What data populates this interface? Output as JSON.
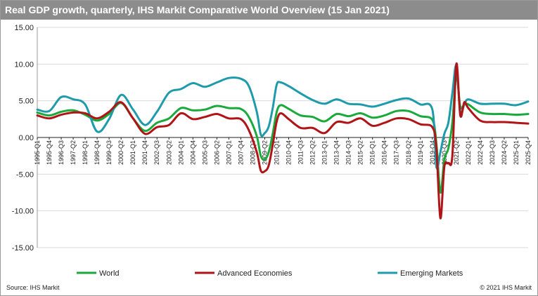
{
  "header": {
    "title": "Real GDP growth, quarterly, IHS Markit Comparative World Overview (15 Jan 2021)"
  },
  "footer": {
    "source": "Source: IHS Markit",
    "copyright": "© 2021 IHS Markit"
  },
  "chart_data": {
    "type": "line",
    "title": "Real GDP growth, quarterly, IHS Markit Comparative World Overview (15 Jan 2021)",
    "xlabel": "",
    "ylabel": "",
    "ylim": [
      -15,
      15
    ],
    "y_ticks": [
      "15.00",
      "10.00",
      "5.00",
      "0.00",
      "-5.00",
      "-10.00",
      "-15.00"
    ],
    "grid": "horizontal",
    "legend": "bottom",
    "x_start": "1995-Q1",
    "x_end": "2025-Q4",
    "x_tick_labels": [
      "1995-Q1",
      "1995-Q4",
      "1996-Q3",
      "1997-Q2",
      "1998-Q1",
      "1998-Q4",
      "1999-Q3",
      "2000-Q2",
      "2001-Q1",
      "2001-Q4",
      "2002-Q3",
      "2003-Q2",
      "2004-Q1",
      "2004-Q4",
      "2005-Q3",
      "2006-Q2",
      "2007-Q1",
      "2007-Q4",
      "2008-Q3",
      "2009-Q2",
      "2010-Q1",
      "2010-Q4",
      "2011-Q3",
      "2012-Q2",
      "2013-Q1",
      "2013-Q4",
      "2014-Q3",
      "2015-Q2",
      "2016-Q1",
      "2016-Q4",
      "2017-Q3",
      "2018-Q2",
      "2019-Q1",
      "2019-Q4",
      "2020-Q3",
      "2021-Q2",
      "2022-Q1",
      "2022-Q4",
      "2023-Q3",
      "2024-Q2",
      "2025-Q1",
      "2025-Q4"
    ],
    "series": [
      {
        "name": "World",
        "color": "#1aaa3c",
        "points": [
          [
            "1995-Q1",
            3.4
          ],
          [
            "1995-Q4",
            3.0
          ],
          [
            "1996-Q3",
            3.5
          ],
          [
            "1997-Q2",
            3.7
          ],
          [
            "1998-Q1",
            3.1
          ],
          [
            "1998-Q4",
            2.3
          ],
          [
            "1999-Q3",
            3.2
          ],
          [
            "2000-Q2",
            4.7
          ],
          [
            "2001-Q1",
            2.6
          ],
          [
            "2001-Q4",
            0.9
          ],
          [
            "2002-Q3",
            2.0
          ],
          [
            "2003-Q2",
            2.6
          ],
          [
            "2004-Q1",
            4.0
          ],
          [
            "2004-Q4",
            3.7
          ],
          [
            "2005-Q3",
            3.8
          ],
          [
            "2006-Q2",
            4.3
          ],
          [
            "2007-Q1",
            4.0
          ],
          [
            "2007-Q4",
            3.9
          ],
          [
            "2008-Q2",
            2.8
          ],
          [
            "2008-Q4",
            0.2
          ],
          [
            "2009-Q1",
            -2.5
          ],
          [
            "2009-Q2",
            -3.0
          ],
          [
            "2009-Q3",
            -2.0
          ],
          [
            "2009-Q4",
            0.5
          ],
          [
            "2010-Q1",
            3.5
          ],
          [
            "2010-Q2",
            4.4
          ],
          [
            "2010-Q4",
            3.9
          ],
          [
            "2011-Q3",
            3.0
          ],
          [
            "2012-Q2",
            2.8
          ],
          [
            "2013-Q1",
            2.2
          ],
          [
            "2013-Q4",
            3.2
          ],
          [
            "2014-Q3",
            2.9
          ],
          [
            "2015-Q2",
            3.3
          ],
          [
            "2016-Q1",
            2.7
          ],
          [
            "2016-Q4",
            3.0
          ],
          [
            "2017-Q3",
            3.6
          ],
          [
            "2018-Q2",
            3.6
          ],
          [
            "2019-Q1",
            2.9
          ],
          [
            "2019-Q4",
            2.4
          ],
          [
            "2020-Q1",
            -0.8
          ],
          [
            "2020-Q2",
            -7.5
          ],
          [
            "2020-Q3",
            -3.0
          ],
          [
            "2020-Q4",
            -1.5
          ],
          [
            "2021-Q1",
            2.0
          ],
          [
            "2021-Q2",
            8.5
          ],
          [
            "2021-Q3",
            4.2
          ],
          [
            "2021-Q4",
            4.5
          ],
          [
            "2022-Q1",
            4.5
          ],
          [
            "2022-Q4",
            3.4
          ],
          [
            "2023-Q3",
            3.2
          ],
          [
            "2024-Q2",
            3.2
          ],
          [
            "2025-Q1",
            3.1
          ],
          [
            "2025-Q4",
            3.2
          ]
        ]
      },
      {
        "name": "Advanced Economies",
        "color": "#b01416",
        "points": [
          [
            "1995-Q1",
            3.0
          ],
          [
            "1995-Q4",
            2.6
          ],
          [
            "1996-Q3",
            3.1
          ],
          [
            "1997-Q2",
            3.4
          ],
          [
            "1998-Q1",
            3.3
          ],
          [
            "1998-Q4",
            2.6
          ],
          [
            "1999-Q3",
            3.5
          ],
          [
            "2000-Q2",
            4.8
          ],
          [
            "2001-Q1",
            2.6
          ],
          [
            "2001-Q4",
            0.5
          ],
          [
            "2002-Q3",
            1.4
          ],
          [
            "2003-Q2",
            1.7
          ],
          [
            "2004-Q1",
            3.3
          ],
          [
            "2004-Q4",
            2.5
          ],
          [
            "2005-Q3",
            2.8
          ],
          [
            "2006-Q2",
            3.2
          ],
          [
            "2007-Q1",
            2.6
          ],
          [
            "2007-Q4",
            2.5
          ],
          [
            "2008-Q2",
            1.0
          ],
          [
            "2008-Q4",
            -2.0
          ],
          [
            "2009-Q1",
            -4.5
          ],
          [
            "2009-Q2",
            -4.6
          ],
          [
            "2009-Q3",
            -3.8
          ],
          [
            "2009-Q4",
            -1.0
          ],
          [
            "2010-Q1",
            2.2
          ],
          [
            "2010-Q2",
            3.3
          ],
          [
            "2010-Q4",
            2.5
          ],
          [
            "2011-Q3",
            1.3
          ],
          [
            "2012-Q2",
            1.3
          ],
          [
            "2013-Q1",
            0.6
          ],
          [
            "2013-Q4",
            2.1
          ],
          [
            "2014-Q3",
            2.0
          ],
          [
            "2015-Q2",
            2.6
          ],
          [
            "2016-Q1",
            1.6
          ],
          [
            "2016-Q4",
            2.0
          ],
          [
            "2017-Q3",
            2.6
          ],
          [
            "2018-Q2",
            2.5
          ],
          [
            "2019-Q1",
            1.8
          ],
          [
            "2019-Q4",
            1.4
          ],
          [
            "2020-Q1",
            -1.5
          ],
          [
            "2020-Q2",
            -11.0
          ],
          [
            "2020-Q3",
            -4.0
          ],
          [
            "2020-Q4",
            -3.5
          ],
          [
            "2021-Q1",
            -2.5
          ],
          [
            "2021-Q2",
            10.0
          ],
          [
            "2021-Q3",
            3.0
          ],
          [
            "2021-Q4",
            4.8
          ],
          [
            "2022-Q1",
            4.0
          ],
          [
            "2022-Q4",
            2.3
          ],
          [
            "2023-Q3",
            2.1
          ],
          [
            "2024-Q2",
            2.1
          ],
          [
            "2025-Q1",
            2.0
          ],
          [
            "2025-Q4",
            1.9
          ]
        ]
      },
      {
        "name": "Emerging Markets",
        "color": "#1e9bab",
        "points": [
          [
            "1995-Q1",
            3.8
          ],
          [
            "1995-Q4",
            3.6
          ],
          [
            "1996-Q3",
            5.5
          ],
          [
            "1997-Q2",
            5.2
          ],
          [
            "1998-Q1",
            4.5
          ],
          [
            "1998-Q4",
            0.8
          ],
          [
            "1999-Q3",
            2.5
          ],
          [
            "2000-Q2",
            5.8
          ],
          [
            "2001-Q1",
            3.8
          ],
          [
            "2001-Q4",
            1.7
          ],
          [
            "2002-Q3",
            3.5
          ],
          [
            "2003-Q2",
            6.1
          ],
          [
            "2004-Q1",
            6.6
          ],
          [
            "2004-Q4",
            7.4
          ],
          [
            "2005-Q3",
            6.9
          ],
          [
            "2006-Q2",
            7.5
          ],
          [
            "2007-Q1",
            8.1
          ],
          [
            "2007-Q4",
            8.0
          ],
          [
            "2008-Q2",
            7.0
          ],
          [
            "2008-Q4",
            3.5
          ],
          [
            "2009-Q1",
            0.4
          ],
          [
            "2009-Q2",
            0.6
          ],
          [
            "2009-Q3",
            1.5
          ],
          [
            "2009-Q4",
            4.0
          ],
          [
            "2010-Q1",
            7.2
          ],
          [
            "2010-Q2",
            7.5
          ],
          [
            "2010-Q4",
            7.0
          ],
          [
            "2011-Q3",
            6.0
          ],
          [
            "2012-Q2",
            5.1
          ],
          [
            "2013-Q1",
            4.6
          ],
          [
            "2013-Q4",
            5.2
          ],
          [
            "2014-Q3",
            4.6
          ],
          [
            "2015-Q2",
            4.5
          ],
          [
            "2016-Q1",
            4.2
          ],
          [
            "2016-Q4",
            4.6
          ],
          [
            "2017-Q3",
            5.1
          ],
          [
            "2018-Q2",
            5.3
          ],
          [
            "2019-Q1",
            4.5
          ],
          [
            "2019-Q4",
            3.8
          ],
          [
            "2020-Q1",
            -4.0
          ],
          [
            "2020-Q2",
            -2.0
          ],
          [
            "2020-Q3",
            0.5
          ],
          [
            "2020-Q4",
            2.0
          ],
          [
            "2021-Q1",
            6.0
          ],
          [
            "2021-Q2",
            9.8
          ],
          [
            "2021-Q3",
            3.5
          ],
          [
            "2021-Q4",
            4.5
          ],
          [
            "2022-Q1",
            5.2
          ],
          [
            "2022-Q4",
            4.6
          ],
          [
            "2023-Q3",
            4.6
          ],
          [
            "2024-Q2",
            4.6
          ],
          [
            "2025-Q1",
            4.4
          ],
          [
            "2025-Q4",
            4.9
          ]
        ]
      }
    ]
  }
}
